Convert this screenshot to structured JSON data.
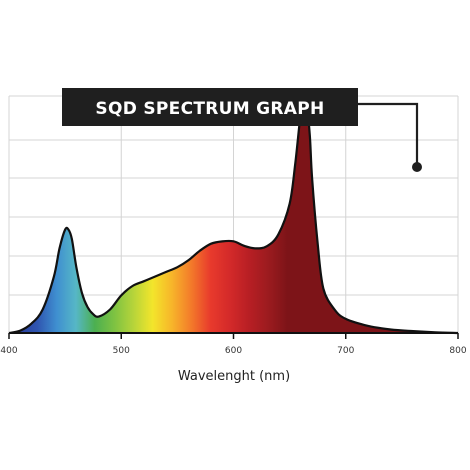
{
  "chart_data": {
    "type": "area",
    "title": "SQD SPECTRUM GRAPH",
    "xlabel": "Wavelenght (nm)",
    "ylabel": "",
    "xlim": [
      400,
      800
    ],
    "ylim": [
      0,
      1
    ],
    "x_ticks": [
      "400",
      "500",
      "600",
      "700",
      "800"
    ],
    "grid": true,
    "legend": "none",
    "series": [
      {
        "x": [
          400,
          410,
          420,
          430,
          440,
          445,
          450,
          453,
          456,
          460,
          465,
          470,
          475,
          480,
          490,
          500,
          510,
          520,
          530,
          540,
          550,
          560,
          570,
          580,
          590,
          600,
          610,
          620,
          630,
          640,
          650,
          655,
          660,
          663,
          665,
          668,
          670,
          675,
          680,
          690,
          700,
          720,
          740,
          760,
          780,
          800
        ],
        "y": [
          0.0,
          0.01,
          0.04,
          0.1,
          0.24,
          0.36,
          0.44,
          0.44,
          0.4,
          0.28,
          0.17,
          0.11,
          0.08,
          0.07,
          0.1,
          0.16,
          0.2,
          0.22,
          0.24,
          0.26,
          0.28,
          0.31,
          0.35,
          0.38,
          0.39,
          0.39,
          0.37,
          0.36,
          0.37,
          0.42,
          0.55,
          0.72,
          0.94,
          1.0,
          0.98,
          0.84,
          0.66,
          0.38,
          0.19,
          0.1,
          0.06,
          0.03,
          0.015,
          0.008,
          0.003,
          0.0
        ]
      }
    ]
  },
  "colors": {
    "title_bg": "#1f1f1f",
    "title_text": "#ffffff",
    "grid": "#d4d4d4",
    "outline": "#111111",
    "axis": "#111111",
    "spectrum_stops": [
      "#2a3f9c",
      "#2f55b0",
      "#3f8fd0",
      "#56b7c6",
      "#4caf50",
      "#7dc242",
      "#b6d43a",
      "#f3e52b",
      "#f7b52a",
      "#f37a2a",
      "#e83a2c",
      "#d42a2a",
      "#b81f24",
      "#9c1b1f",
      "#7d1418"
    ]
  }
}
